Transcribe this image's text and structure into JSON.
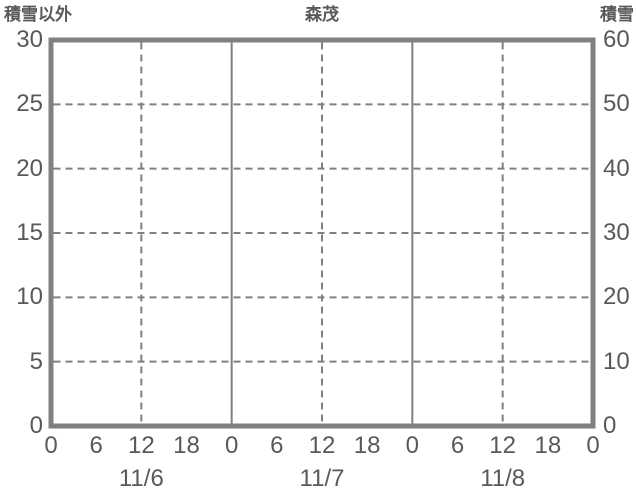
{
  "chart_data": {
    "type": "line",
    "title": "森茂",
    "subtitle": "",
    "left_axis": {
      "label": "積雪以外",
      "ticks": [
        0,
        5,
        10,
        15,
        20,
        25,
        30
      ],
      "range": [
        0,
        30
      ]
    },
    "right_axis": {
      "label": "積雪",
      "ticks": [
        0,
        10,
        20,
        30,
        40,
        50,
        60
      ],
      "range": [
        0,
        60
      ]
    },
    "x_axis": {
      "range_hours": [
        0,
        72
      ],
      "hour_ticks": [
        0,
        6,
        12,
        18,
        24,
        30,
        36,
        42,
        48,
        54,
        60,
        66,
        72
      ],
      "hour_labels": [
        "0",
        "6",
        "12",
        "18",
        "0",
        "6",
        "12",
        "18",
        "0",
        "6",
        "12",
        "18",
        "0"
      ],
      "day_labels": [
        "11/6",
        "11/7",
        "11/8"
      ],
      "day_label_center_hours": [
        12,
        36,
        60
      ]
    },
    "grid": {
      "horizontal_dashed_values": [
        5,
        10,
        15,
        20,
        25
      ],
      "vertical_dashed_hours": [
        12,
        36,
        60
      ],
      "vertical_solid_hours": [
        24,
        48
      ],
      "grid_on": true
    },
    "legend": {
      "visible": false,
      "entries": []
    },
    "series": []
  },
  "colors": {
    "text": "#595959",
    "plot_border": "#808080",
    "grid_line": "#808080",
    "background": "#ffffff"
  }
}
